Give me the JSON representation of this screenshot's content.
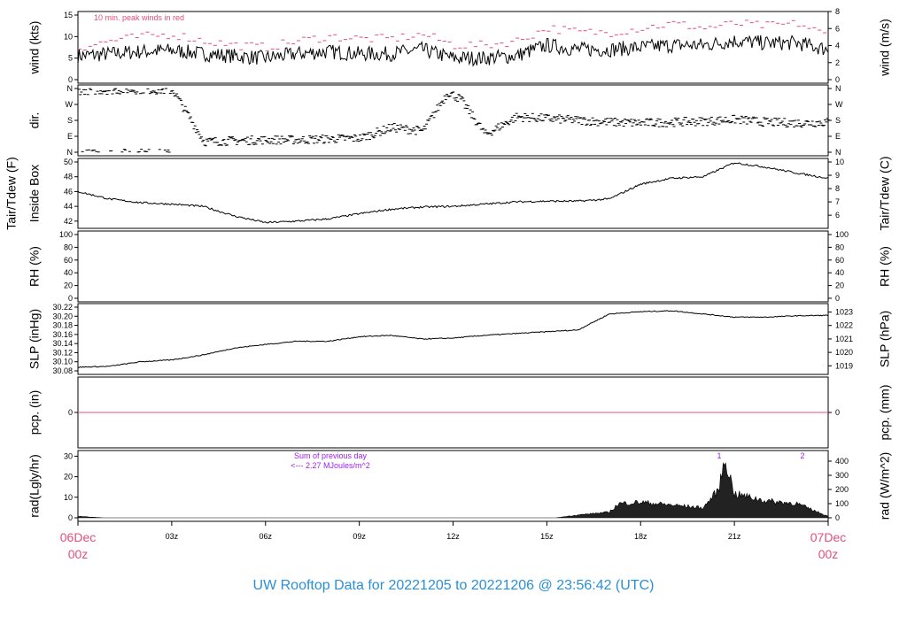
{
  "title": "UW Rooftop Data for 20221205  to  20221206 @ 23:56:42  (UTC)",
  "colors": {
    "gust": "#e0507a",
    "title": "#2b8fd6",
    "annot": "#a020f0",
    "date": "#e0507a",
    "pcp": "#e0507a"
  },
  "x_axis": {
    "start_label": [
      "06Dec",
      "00z"
    ],
    "end_label": [
      "07Dec",
      "00z"
    ],
    "ticks": [
      "03z",
      "06z",
      "09z",
      "12z",
      "15z",
      "18z",
      "21z"
    ],
    "hours": [
      3,
      6,
      9,
      12,
      15,
      18,
      21
    ]
  },
  "chart_data": [
    {
      "type": "line",
      "id": "wind",
      "ylabel": "wind (kts)",
      "ylabel_right": "wind (m/s)",
      "ylim": [
        0,
        15
      ],
      "yticks": [
        "0",
        "5",
        "10",
        "15"
      ],
      "yticks_right": [
        "0",
        "2",
        "4",
        "6",
        "8"
      ],
      "annotation": "10 min. peak winds in red",
      "hours": [
        0,
        1,
        2,
        3,
        4,
        5,
        6,
        7,
        8,
        9,
        10,
        11,
        12,
        13,
        14,
        15,
        16,
        17,
        18,
        19,
        20,
        21,
        22,
        23,
        24
      ],
      "values": [
        5.5,
        6,
        6.5,
        6.8,
        6,
        5.5,
        5,
        6,
        6.5,
        6,
        6,
        7,
        5,
        5,
        5.5,
        8,
        7,
        7,
        7.5,
        8,
        8,
        9,
        8.5,
        8.5,
        7
      ],
      "gusts": [
        7.5,
        9,
        10,
        10.5,
        9,
        8,
        7.5,
        9,
        10,
        9.5,
        9.5,
        10.5,
        8,
        8,
        9,
        12,
        11,
        11,
        12,
        13,
        12,
        13,
        12.5,
        13,
        10
      ]
    },
    {
      "type": "scatter",
      "id": "dir",
      "ylabel": "dir.",
      "yticks": [
        "N",
        "E",
        "S",
        "W",
        "N"
      ],
      "hours": [
        0,
        1,
        2,
        3,
        4,
        5,
        6,
        7,
        8,
        9,
        10,
        11,
        11.8,
        12.2,
        13,
        14,
        15,
        16,
        17,
        18,
        19,
        20,
        21,
        22,
        23,
        24
      ],
      "values": [
        350,
        352,
        355,
        350,
        60,
        65,
        70,
        70,
        75,
        80,
        140,
        120,
        340,
        300,
        100,
        200,
        190,
        180,
        170,
        165,
        170,
        175,
        185,
        170,
        165,
        170
      ]
    },
    {
      "type": "line",
      "id": "temp",
      "ylabel": "Tair/Tdew (F)",
      "ylabel2": "Inside Box",
      "ylabel_right": "Tair/Tdew (C)",
      "ylim": [
        41.5,
        50
      ],
      "yticks": [
        "42",
        "44",
        "46",
        "48",
        "50"
      ],
      "yticks_right": [
        "6",
        "7",
        "8",
        "9",
        "10"
      ],
      "hours": [
        0,
        1,
        2,
        3,
        4,
        5,
        6,
        7,
        8,
        9,
        10,
        11,
        12,
        13,
        14,
        15,
        16,
        17,
        18,
        19,
        20,
        21,
        22,
        23,
        24
      ],
      "values": [
        46,
        45,
        44.5,
        44.3,
        44,
        42.7,
        41.8,
        42,
        42.3,
        43,
        43.6,
        43.9,
        44,
        44.3,
        44.6,
        44.7,
        44.7,
        45,
        47,
        47.8,
        48,
        49.9,
        49.3,
        48.5,
        47.8
      ]
    },
    {
      "type": "line",
      "id": "rh",
      "ylabel": "RH (%)",
      "ylabel_right": "RH (%)",
      "ylim": [
        0,
        100
      ],
      "yticks": [
        "0",
        "20",
        "40",
        "60",
        "80",
        "100"
      ],
      "hours": [],
      "values": []
    },
    {
      "type": "line",
      "id": "slp",
      "ylabel": "SLP (inHg)",
      "ylabel_right": "SLP (hPa)",
      "ylim": [
        30.08,
        30.22
      ],
      "yticks": [
        "30.08",
        "30.10",
        "30.12",
        "30.14",
        "30.16",
        "30.18",
        "30.20",
        "30.22"
      ],
      "yticks_right": [
        "1019",
        "1020",
        "1021",
        "1022",
        "1023"
      ],
      "hours": [
        0,
        1,
        2,
        3,
        4,
        5,
        6,
        7,
        8,
        9,
        10,
        11,
        12,
        13,
        14,
        15,
        16,
        17,
        18,
        19,
        20,
        21,
        22,
        23,
        24
      ],
      "values": [
        30.088,
        30.09,
        30.1,
        30.104,
        30.115,
        30.13,
        30.138,
        30.145,
        30.145,
        30.155,
        30.158,
        30.15,
        30.152,
        30.158,
        30.162,
        30.166,
        30.17,
        30.205,
        30.21,
        30.212,
        30.205,
        30.198,
        30.198,
        30.201,
        30.202
      ]
    },
    {
      "type": "line",
      "id": "pcp",
      "ylabel": "pcp. (in)",
      "ylabel_right": "pcp. (mm)",
      "yticks": [
        "0"
      ],
      "yticks_right": [
        "0"
      ],
      "hours": [
        0,
        24
      ],
      "values": [
        0,
        0
      ]
    },
    {
      "type": "area",
      "id": "rad",
      "ylabel": "rad(Lgly/hr)",
      "ylabel_right": "rad (W/m^2)",
      "ylim": [
        0,
        450
      ],
      "yticks": [
        "0",
        "10",
        "20",
        "30"
      ],
      "yticks_right": [
        "0",
        "100",
        "200",
        "300",
        "400"
      ],
      "annotation": [
        "Sum of previous day",
        "<--- 2.27 MJoules/m^2"
      ],
      "markers": [
        "1",
        "2"
      ],
      "hours": [
        0,
        0.8,
        15.3,
        16,
        17,
        17.3,
        18,
        19,
        20,
        20.5,
        20.7,
        21,
        22,
        23,
        24
      ],
      "values": [
        10,
        0,
        0,
        20,
        40,
        100,
        110,
        90,
        70,
        200,
        420,
        170,
        120,
        100,
        10
      ]
    }
  ]
}
